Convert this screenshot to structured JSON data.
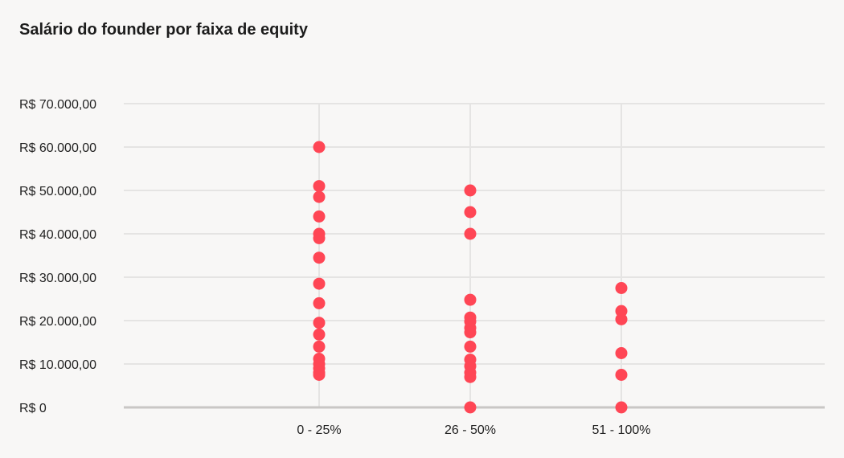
{
  "chart_data": {
    "type": "scatter",
    "title": "Salário do founder por faixa de equity",
    "xlabel": "",
    "ylabel": "",
    "categories": [
      "0 - 25%",
      "26 - 50%",
      "51 - 100%"
    ],
    "y_ticks": [
      0,
      10000,
      20000,
      30000,
      40000,
      50000,
      60000,
      70000
    ],
    "y_tick_labels": [
      "R$ 0",
      "R$ 10.000,00",
      "R$ 20.000,00",
      "R$ 30.000,00",
      "R$ 40.000,00",
      "R$ 50.000,00",
      "R$ 60.000,00",
      "R$ 70.000,00"
    ],
    "ylim": [
      0,
      70000
    ],
    "grid": true,
    "legend": "none",
    "point_color": "#ff4655",
    "series": [
      {
        "category": "0 - 25%",
        "values": [
          60000,
          51000,
          48500,
          44000,
          40000,
          39000,
          34500,
          28500,
          24000,
          19500,
          16800,
          14000,
          11200,
          10000,
          9000,
          8000,
          7500
        ]
      },
      {
        "category": "26 - 50%",
        "values": [
          50000,
          45000,
          40000,
          24800,
          20700,
          19800,
          18300,
          17300,
          14000,
          11000,
          9500,
          8000,
          7000,
          0
        ]
      },
      {
        "category": "51 - 100%",
        "values": [
          27500,
          22200,
          20300,
          12500,
          7500,
          0
        ]
      }
    ]
  }
}
